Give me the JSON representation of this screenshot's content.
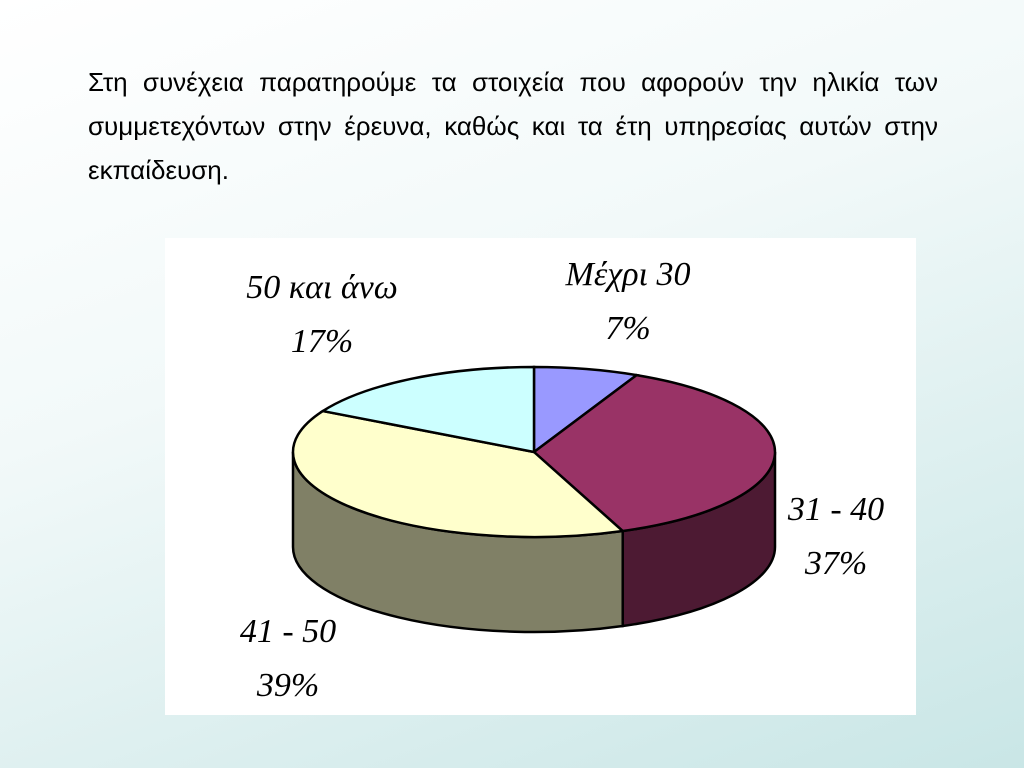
{
  "paragraph": "Στη συνέχεια παρατηρούμε τα στοιχεία που αφορούν την ηλικία των συμμετεχόντων στην έρευνα, καθώς και τα έτη υπηρεσίας αυτών στην εκπαίδευση.",
  "chart_data": {
    "type": "pie",
    "categories": [
      "Μέχρι 30",
      "31 - 40",
      "41 - 50",
      "50 και άνω"
    ],
    "values": [
      7,
      37,
      39,
      17
    ],
    "value_labels": [
      "7%",
      "37%",
      "39%",
      "17%"
    ],
    "colors": [
      "#9999ff",
      "#993366",
      "#ffffcc",
      "#ccffff"
    ]
  }
}
